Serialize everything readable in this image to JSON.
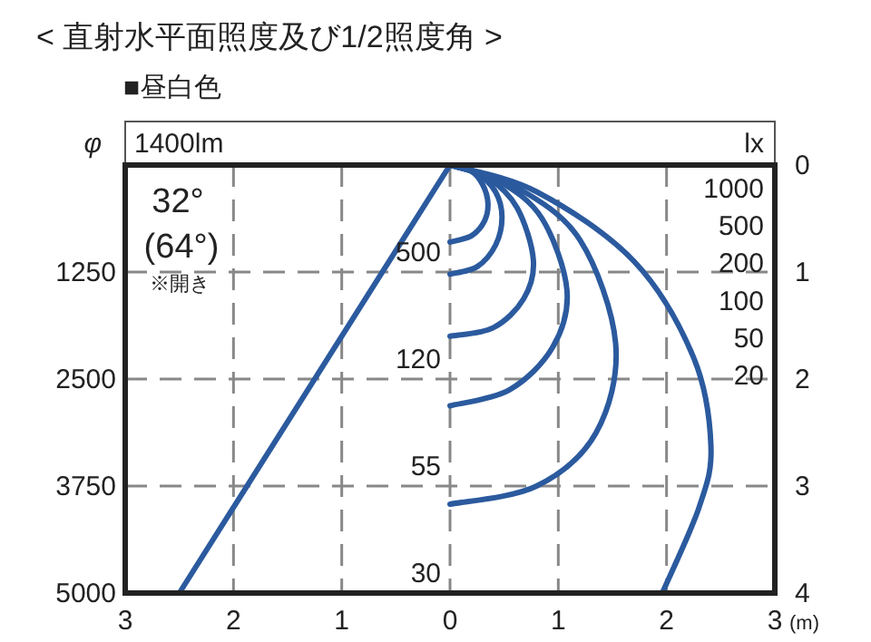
{
  "chart_data": {
    "type": "line",
    "title": "< 直射水平面照度及び1/2照度角 >",
    "subtitle": "■昼白色",
    "xlabel": "(m)",
    "ylabel": "φ",
    "xlim": [
      -3,
      3
    ],
    "xticks": [
      {
        "value": -3,
        "label": "3"
      },
      {
        "value": -2,
        "label": "2"
      },
      {
        "value": -1,
        "label": "1"
      },
      0,
      1,
      2,
      3
    ],
    "ylim": [
      5000,
      0
    ],
    "yticks": [
      1250,
      2500,
      3750,
      5000
    ],
    "y2lim": [
      4,
      0
    ],
    "y2ticks": [
      0,
      1,
      2,
      3,
      4
    ],
    "grid": true,
    "line_style": "solid",
    "marker": "none",
    "series": [
      {
        "name": "1000",
        "color": "#2b5a9e",
        "axis": "y2",
        "x": [
          0,
          0.2,
          0.3,
          0.35,
          0.32,
          0.2,
          0
        ],
        "values": [
          0,
          0.06,
          0.18,
          0.35,
          0.52,
          0.66,
          0.72
        ]
      },
      {
        "name": "500",
        "color": "#2b5a9e",
        "axis": "y2",
        "x": [
          0,
          0.25,
          0.42,
          0.48,
          0.42,
          0.25,
          0
        ],
        "values": [
          0,
          0.08,
          0.25,
          0.49,
          0.75,
          0.95,
          1.02
        ]
      },
      {
        "name": "200",
        "color": "#2b5a9e",
        "axis": "y2",
        "x": [
          0,
          0.35,
          0.62,
          0.77,
          0.68,
          0.4,
          0
        ],
        "values": [
          0,
          0.12,
          0.4,
          0.89,
          1.25,
          1.52,
          1.6
        ]
      },
      {
        "name": "100",
        "color": "#2b5a9e",
        "axis": "y2",
        "x": [
          0,
          0.45,
          0.85,
          1.08,
          0.95,
          0.55,
          0
        ],
        "values": [
          0,
          0.15,
          0.5,
          1.17,
          1.7,
          2.1,
          2.25
        ]
      },
      {
        "name": "50",
        "color": "#2b5a9e",
        "axis": "y2",
        "x": [
          0,
          0.6,
          1.2,
          1.53,
          1.35,
          0.8,
          0
        ],
        "values": [
          0,
          0.2,
          0.7,
          1.67,
          2.5,
          3.0,
          3.17
        ]
      },
      {
        "name": "20",
        "color": "#2b5a9e",
        "axis": "y2",
        "x": [
          0,
          0.8,
          1.7,
          2.25,
          2.41,
          2.3,
          1.96
        ],
        "values": [
          0,
          0.25,
          0.9,
          1.8,
          2.63,
          3.2,
          4
        ]
      },
      {
        "color": "#2b5a9e",
        "axis": "y2",
        "x": [
          0,
          -2.5
        ],
        "values": [
          0,
          4
        ]
      }
    ],
    "annotations": [
      "1400lm",
      "lx",
      "32°",
      "(64°)",
      "※開き",
      "500",
      "120",
      "55",
      "30"
    ]
  }
}
